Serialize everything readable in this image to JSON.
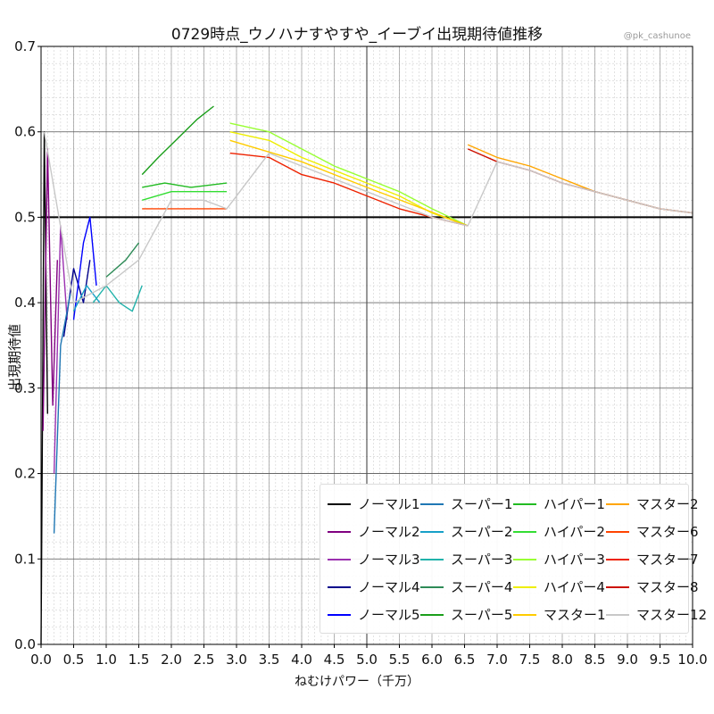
{
  "title": "0729時点_ウノハナすやすや_イーブイ出現期待値推移",
  "credit": "@pk_cashunoe",
  "chart_data": {
    "type": "line",
    "xlabel": "ねむけパワー（千万）",
    "ylabel": "出現期待値",
    "xlim": [
      0,
      10
    ],
    "ylim": [
      0,
      0.7
    ],
    "x_ticks": [
      "0.0",
      "0.5",
      "1.0",
      "1.5",
      "2.0",
      "2.5",
      "3.0",
      "3.5",
      "4.0",
      "4.5",
      "5.0",
      "5.5",
      "6.0",
      "6.5",
      "7.0",
      "7.5",
      "8.0",
      "8.5",
      "9.0",
      "9.5",
      "10.0"
    ],
    "y_ticks": [
      "0.0",
      "0.1",
      "0.2",
      "0.3",
      "0.4",
      "0.5",
      "0.6",
      "0.7"
    ],
    "reference_line": 0.5,
    "grid": true,
    "legend_position": "lower-right",
    "series": [
      {
        "name": "ノーマル1",
        "color": "#000000",
        "x": [
          0.0,
          0.05,
          0.1
        ],
        "y": [
          0.0,
          0.6,
          0.27
        ]
      },
      {
        "name": "ノーマル2",
        "color": "#800080",
        "x": [
          0.03,
          0.1,
          0.18,
          0.25
        ],
        "y": [
          0.25,
          0.58,
          0.28,
          0.45
        ]
      },
      {
        "name": "ノーマル3",
        "color": "#9b30b0",
        "x": [
          0.2,
          0.3,
          0.4
        ],
        "y": [
          0.2,
          0.49,
          0.38
        ]
      },
      {
        "name": "ノーマル4",
        "color": "#00008b",
        "x": [
          0.35,
          0.5,
          0.65,
          0.75
        ],
        "y": [
          0.36,
          0.44,
          0.4,
          0.45
        ]
      },
      {
        "name": "ノーマル5",
        "color": "#0000ff",
        "x": [
          0.5,
          0.65,
          0.75,
          0.85
        ],
        "y": [
          0.38,
          0.47,
          0.5,
          0.42
        ]
      },
      {
        "name": "スーパー1",
        "color": "#1f77b4",
        "x": [
          0.2,
          0.3,
          0.45
        ],
        "y": [
          0.13,
          0.35,
          0.41
        ]
      },
      {
        "name": "スーパー2",
        "color": "#17a0c8",
        "x": [
          0.5,
          0.7,
          0.9
        ],
        "y": [
          0.39,
          0.42,
          0.4
        ]
      },
      {
        "name": "スーパー3",
        "color": "#20b2aa",
        "x": [
          0.8,
          1.0,
          1.2,
          1.4,
          1.55
        ],
        "y": [
          0.4,
          0.42,
          0.4,
          0.39,
          0.42
        ]
      },
      {
        "name": "スーパー4",
        "color": "#2e8b57",
        "x": [
          1.0,
          1.3,
          1.5
        ],
        "y": [
          0.43,
          0.45,
          0.47
        ]
      },
      {
        "name": "スーパー5",
        "color": "#1a9e1a",
        "x": [
          1.55,
          1.8,
          2.0,
          2.2,
          2.4,
          2.65
        ],
        "y": [
          0.55,
          0.57,
          0.585,
          0.6,
          0.615,
          0.63
        ]
      },
      {
        "name": "ハイパー1",
        "color": "#22bb22",
        "x": [
          1.55,
          1.9,
          2.3,
          2.85
        ],
        "y": [
          0.535,
          0.54,
          0.535,
          0.54
        ]
      },
      {
        "name": "ハイパー2",
        "color": "#33dd33",
        "x": [
          1.55,
          2.0,
          2.85
        ],
        "y": [
          0.52,
          0.53,
          0.53
        ]
      },
      {
        "name": "ハイパー3",
        "color": "#99ff33",
        "x": [
          2.9,
          3.5,
          4.0,
          4.5,
          5.0,
          5.5,
          6.0,
          6.55
        ],
        "y": [
          0.61,
          0.6,
          0.58,
          0.56,
          0.545,
          0.53,
          0.51,
          0.49
        ]
      },
      {
        "name": "ハイパー4",
        "color": "#eeee00",
        "x": [
          2.9,
          3.5,
          4.0,
          4.5,
          5.0,
          5.5,
          6.0,
          6.55
        ],
        "y": [
          0.6,
          0.59,
          0.57,
          0.555,
          0.54,
          0.525,
          0.505,
          0.49
        ]
      },
      {
        "name": "マスター1",
        "color": "#ffcc00",
        "x": [
          2.9,
          4.0,
          5.0,
          6.55
        ],
        "y": [
          0.59,
          0.565,
          0.535,
          0.49
        ]
      },
      {
        "name": "マスター2",
        "color": "#ffa500",
        "x": [
          6.55,
          7.0,
          7.5,
          8.0,
          8.5,
          9.0,
          9.5,
          10.0
        ],
        "y": [
          0.585,
          0.57,
          0.56,
          0.545,
          0.53,
          0.52,
          0.51,
          0.505
        ]
      },
      {
        "name": "マスター6",
        "color": "#ff4400",
        "x": [
          1.55,
          2.0,
          2.5,
          2.85
        ],
        "y": [
          0.51,
          0.51,
          0.51,
          0.51
        ]
      },
      {
        "name": "マスター7",
        "color": "#ee2200",
        "x": [
          2.9,
          3.5,
          4.0,
          4.5,
          5.0,
          5.5,
          6.0,
          6.55
        ],
        "y": [
          0.575,
          0.57,
          0.55,
          0.54,
          0.525,
          0.51,
          0.5,
          0.49
        ]
      },
      {
        "name": "マスター8",
        "color": "#cc1100",
        "x": [
          6.55,
          7.0,
          7.5,
          8.0,
          8.5,
          9.0,
          9.5,
          10.0
        ],
        "y": [
          0.58,
          0.565,
          0.555,
          0.54,
          0.53,
          0.52,
          0.51,
          0.505
        ]
      },
      {
        "name": "マスター12",
        "color": "#c8c8c8",
        "x": [
          0.05,
          0.5,
          1.0,
          1.5,
          2.0,
          2.5,
          2.85,
          3.5,
          4.0,
          4.5,
          5.0,
          5.5,
          6.0,
          6.55,
          7.0,
          7.5,
          8.0,
          8.5,
          9.0,
          9.5,
          10.0
        ],
        "y": [
          0.6,
          0.4,
          0.42,
          0.45,
          0.52,
          0.52,
          0.51,
          0.575,
          0.56,
          0.545,
          0.53,
          0.515,
          0.5,
          0.49,
          0.565,
          0.555,
          0.54,
          0.53,
          0.52,
          0.51,
          0.505
        ]
      }
    ]
  }
}
